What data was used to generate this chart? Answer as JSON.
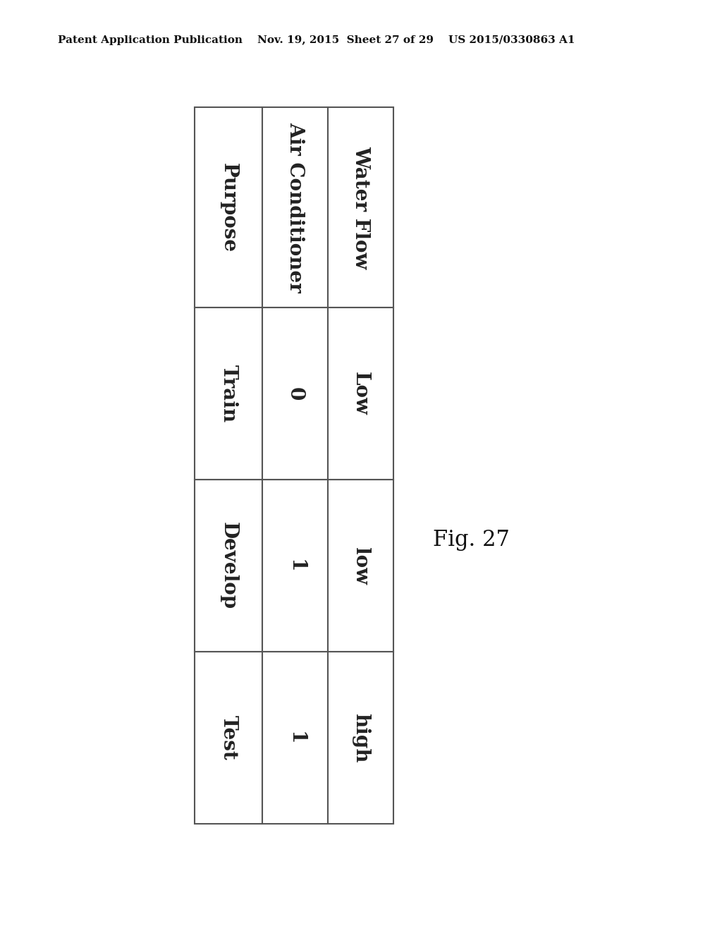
{
  "header_text": "Patent Application Publication    Nov. 19, 2015  Sheet 27 of 29    US 2015/0330863 A1",
  "figure_label": "Fig. 27",
  "table": {
    "columns": [
      "Purpose",
      "Air Conditioner",
      "Water Flow"
    ],
    "rows": [
      [
        "Train",
        "0",
        "Low"
      ],
      [
        "Develop",
        "1",
        "low"
      ],
      [
        "Test",
        "1",
        "high"
      ]
    ]
  },
  "bg_color": "#ffffff",
  "text_color": "#333333",
  "line_color": "#555555",
  "header_fontsize": 11,
  "cell_fontsize": 20,
  "col_header_fontsize": 20,
  "fig_label_fontsize": 22
}
